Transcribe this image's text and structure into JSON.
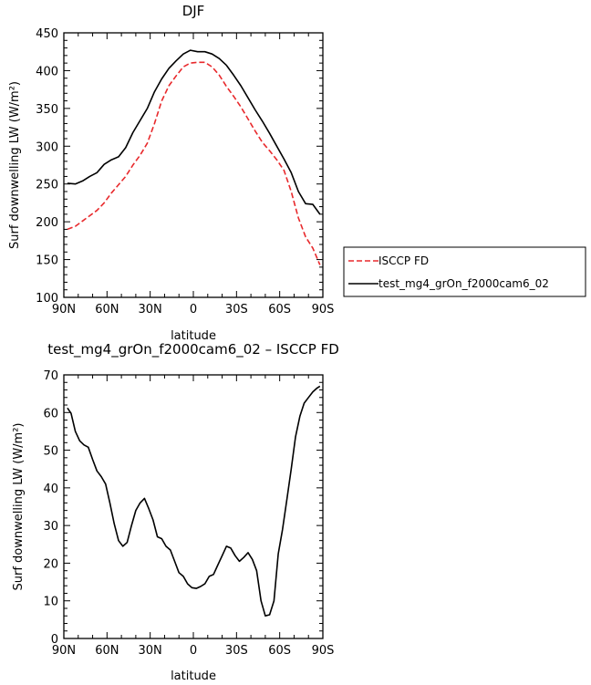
{
  "chart_data": [
    {
      "type": "line",
      "title": "DJF",
      "xlabel": "latitude",
      "ylabel": "Surf downwelling LW (W/m²)",
      "x_tick_labels": [
        "90N",
        "60N",
        "30N",
        "0",
        "30S",
        "60S",
        "90S"
      ],
      "x_tick_values": [
        90,
        60,
        30,
        0,
        -30,
        -60,
        -90
      ],
      "xlim": [
        90,
        -90
      ],
      "ylim": [
        100,
        450
      ],
      "y_ticks": [
        100,
        150,
        200,
        250,
        300,
        350,
        400,
        450
      ],
      "legend_position": "right",
      "series": [
        {
          "name": "ISCCP FD",
          "color": "#e8292c",
          "style": "dashed",
          "x": [
            87.5,
            82,
            77,
            72,
            67,
            62,
            57,
            52,
            47,
            42,
            37,
            32,
            27,
            22,
            17,
            12,
            7,
            2,
            -3,
            -8,
            -13,
            -18,
            -23,
            -28,
            -33,
            -38,
            -43,
            -48,
            -53,
            -58,
            -63,
            -68,
            -73,
            -78,
            -83,
            -88
          ],
          "y": [
            190,
            194,
            201,
            208,
            215,
            225,
            238,
            249,
            260,
            275,
            288,
            304,
            330,
            360,
            380,
            393,
            405,
            410,
            411,
            411,
            405,
            394,
            379,
            366,
            352,
            336,
            320,
            305,
            294,
            282,
            268,
            240,
            205,
            180,
            165,
            143
          ]
        },
        {
          "name": "test_mg4_grOn_f2000cam6_02",
          "color": "#000000",
          "style": "solid",
          "x": [
            87.5,
            82,
            77,
            72,
            67,
            62,
            57,
            52,
            47,
            42,
            37,
            32,
            27,
            22,
            17,
            12,
            7,
            2,
            -3,
            -8,
            -13,
            -18,
            -23,
            -28,
            -33,
            -38,
            -43,
            -48,
            -53,
            -58,
            -63,
            -68,
            -73,
            -78,
            -83,
            -88
          ],
          "y": [
            251,
            250,
            254,
            260,
            265,
            276,
            282,
            286,
            298,
            318,
            334,
            350,
            372,
            389,
            403,
            413,
            422,
            427,
            425,
            425,
            422,
            416,
            407,
            394,
            380,
            364,
            348,
            333,
            317,
            300,
            283,
            265,
            240,
            224,
            223,
            210
          ]
        }
      ]
    },
    {
      "type": "line",
      "title": "test_mg4_grOn_f2000cam6_02 – ISCCP FD",
      "xlabel": "latitude",
      "ylabel": "Surf downwelling LW (W/m²)",
      "x_tick_labels": [
        "90N",
        "60N",
        "30N",
        "0",
        "30S",
        "60S",
        "90S"
      ],
      "x_tick_values": [
        90,
        60,
        30,
        0,
        -30,
        -60,
        -90
      ],
      "xlim": [
        90,
        -90
      ],
      "ylim": [
        0,
        70
      ],
      "y_ticks": [
        0,
        10,
        20,
        30,
        40,
        50,
        60,
        70
      ],
      "series": [
        {
          "color": "#000000",
          "style": "solid",
          "x": [
            87.5,
            85,
            82,
            79,
            76,
            73,
            70,
            67,
            64,
            61,
            58,
            55,
            52,
            49,
            46,
            43,
            40,
            37,
            34,
            31,
            28,
            25,
            22,
            19,
            16,
            13,
            10,
            7,
            4,
            1,
            -2,
            -5,
            -8,
            -11,
            -14,
            -17,
            -20,
            -23,
            -26,
            -29,
            -32,
            -35,
            -38,
            -41,
            -44,
            -47,
            -50,
            -53,
            -56,
            -59,
            -62,
            -65,
            -68,
            -71,
            -74,
            -77,
            -80,
            -83,
            -86,
            -88
          ],
          "y": [
            61.2,
            59.8,
            55.0,
            52.5,
            51.4,
            50.8,
            47.5,
            44.5,
            43.0,
            41.0,
            36.0,
            30.5,
            26.0,
            24.5,
            25.5,
            30.0,
            34.0,
            36.0,
            37.2,
            34.5,
            31.5,
            27.0,
            26.5,
            24.5,
            23.5,
            20.5,
            17.5,
            16.5,
            14.5,
            13.5,
            13.3,
            13.8,
            14.5,
            16.5,
            17.0,
            19.5,
            22.0,
            24.5,
            24.0,
            22.0,
            20.5,
            21.5,
            22.8,
            21.0,
            18.0,
            10.0,
            6.0,
            6.3,
            10.0,
            22.5,
            29.0,
            37.0,
            45.0,
            53.5,
            59.0,
            62.5,
            64.0,
            65.5,
            66.5,
            67.0
          ]
        }
      ]
    }
  ]
}
